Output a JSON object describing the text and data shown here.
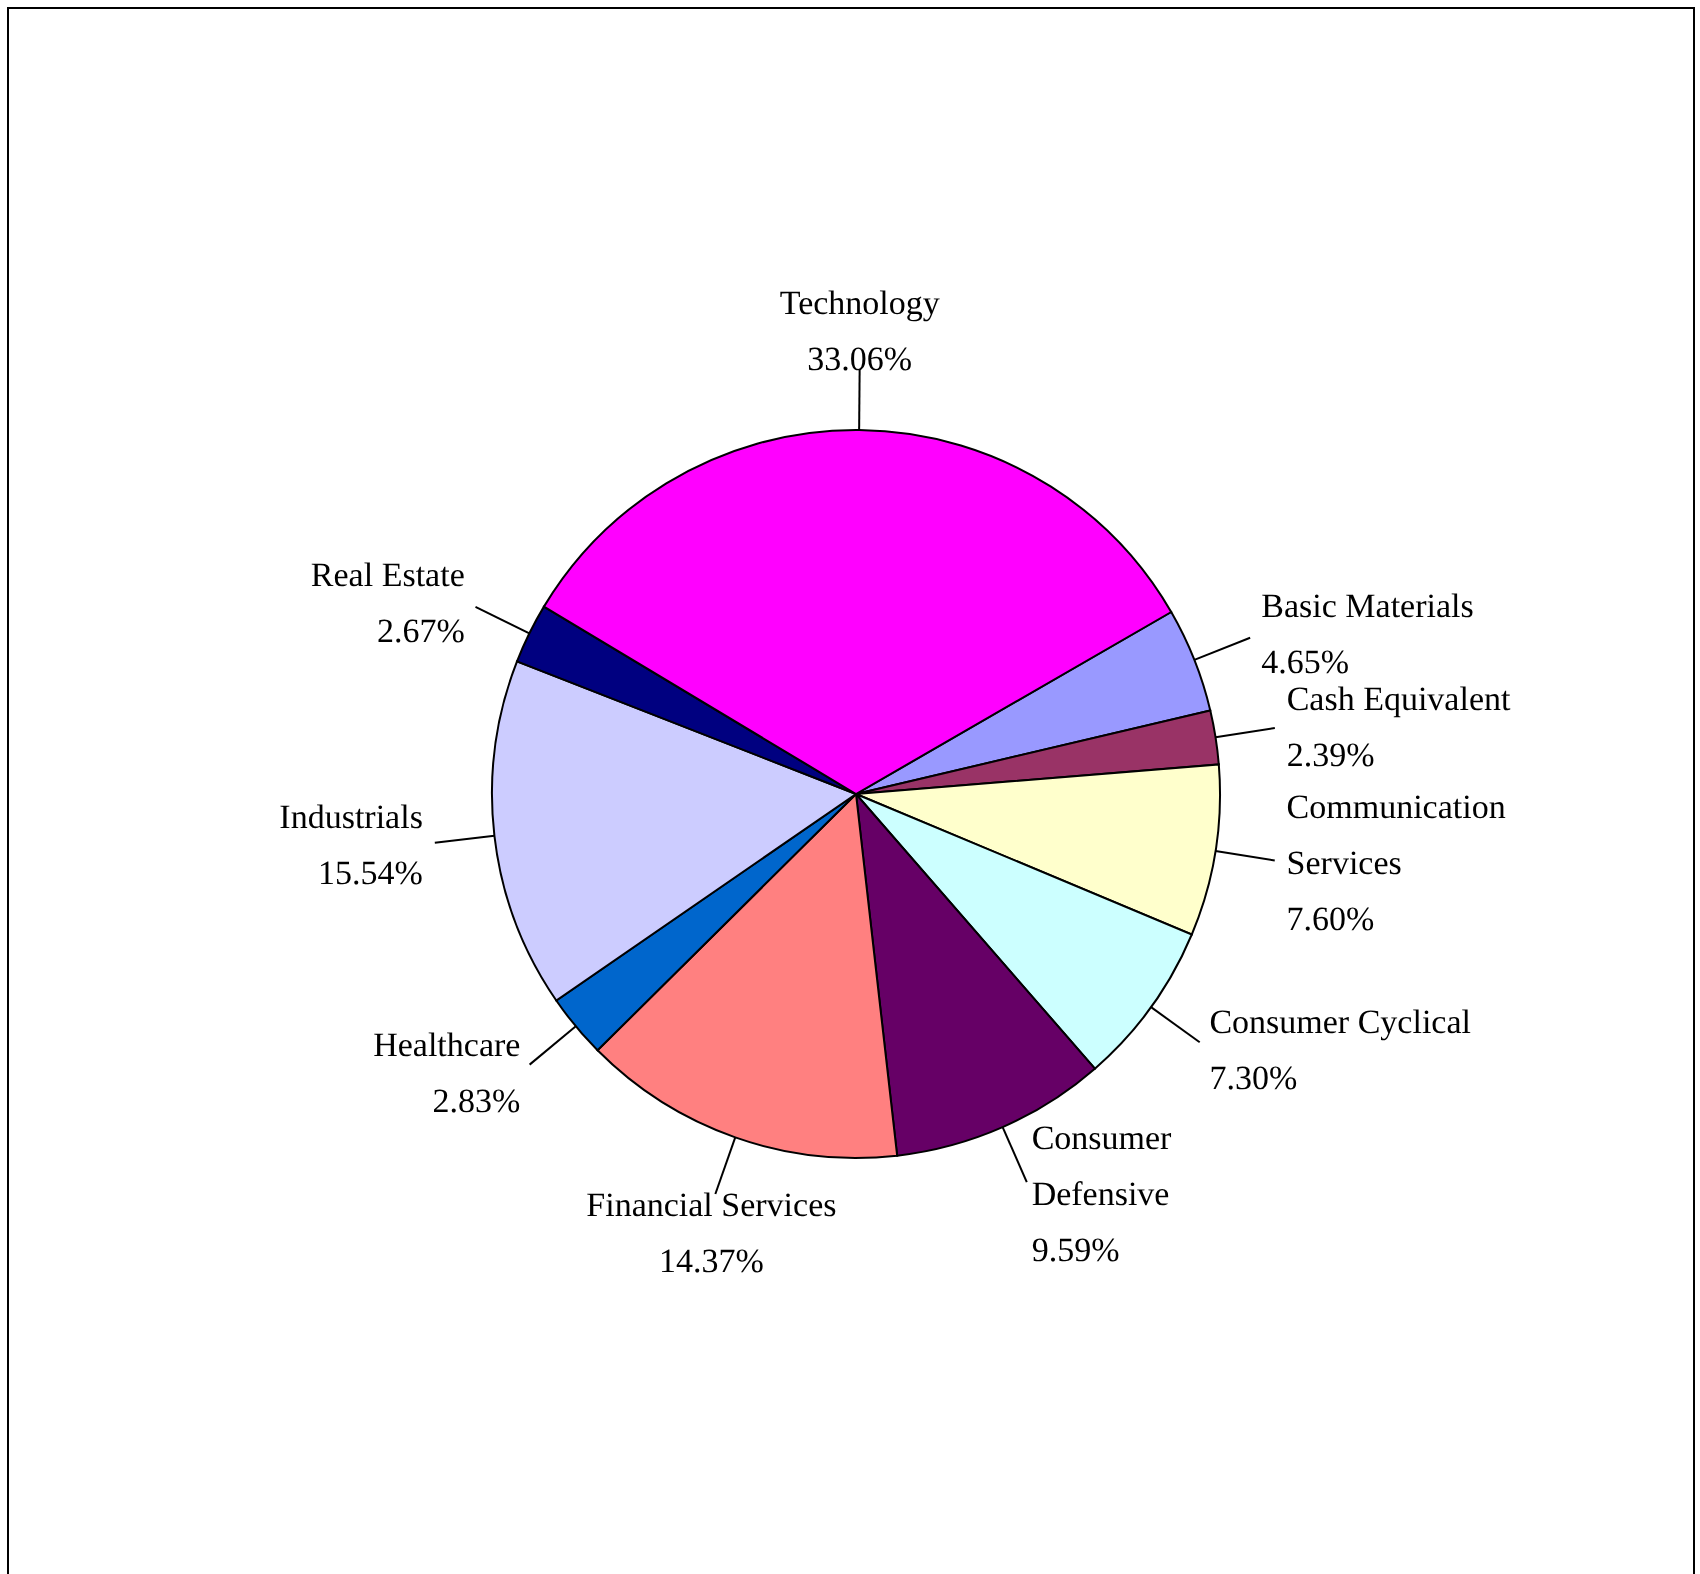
{
  "chart_data": {
    "type": "pie",
    "categories": [
      "Basic Materials",
      "Cash Equivalent",
      "Communication Services",
      "Consumer Cyclical",
      "Consumer Defensive",
      "Financial Services",
      "Healthcare",
      "Industrials",
      "Real Estate",
      "Technology"
    ],
    "values": [
      4.65,
      2.39,
      7.6,
      7.3,
      9.59,
      14.37,
      2.83,
      15.54,
      2.67,
      33.06
    ],
    "value_labels": [
      "4.65%",
      "2.39%",
      "7.60%",
      "7.30%",
      "9.59%",
      "14.37%",
      "2.83%",
      "15.54%",
      "2.67%",
      "33.06%"
    ],
    "colors": [
      "#9999ff",
      "#993366",
      "#ffffcc",
      "#ccffff",
      "#660066",
      "#ff8080",
      "#0066cc",
      "#ccccff",
      "#000080",
      "#ff00ff"
    ]
  }
}
